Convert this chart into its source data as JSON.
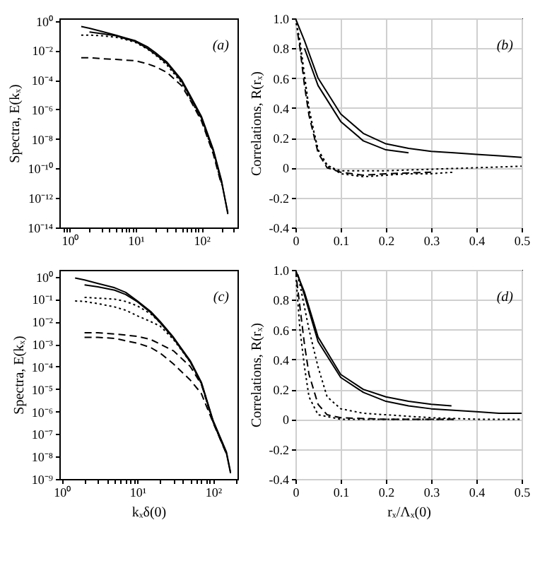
{
  "chart_data": [
    {
      "type": "line",
      "ylabel": "Spectra, E(kₓ)",
      "log": "xy",
      "annotations": [
        "(a)"
      ],
      "xlim": [
        0.7,
        350
      ],
      "ylim": [
        1e-14,
        1.5
      ],
      "xticks": [
        {
          "value": 0.8,
          "label": null
        },
        {
          "value": 0.9,
          "label": null
        },
        {
          "value": 1,
          "label": "10⁰"
        },
        {
          "value": 2,
          "label": null
        },
        {
          "value": 3,
          "label": null
        },
        {
          "value": 4,
          "label": null
        },
        {
          "value": 5,
          "label": null
        },
        {
          "value": 6,
          "label": null
        },
        {
          "value": 7,
          "label": null
        },
        {
          "value": 8,
          "label": null
        },
        {
          "value": 9,
          "label": null
        },
        {
          "value": 10,
          "label": "10¹"
        },
        {
          "value": 20,
          "label": null
        },
        {
          "value": 30,
          "label": null
        },
        {
          "value": 40,
          "label": null
        },
        {
          "value": 50,
          "label": null
        },
        {
          "value": 60,
          "label": null
        },
        {
          "value": 70,
          "label": null
        },
        {
          "value": 80,
          "label": null
        },
        {
          "value": 90,
          "label": null
        },
        {
          "value": 100,
          "label": "10²"
        },
        {
          "value": 200,
          "label": null
        },
        {
          "value": 300,
          "label": null
        }
      ],
      "yticks": [
        {
          "value": 1,
          "label": "10⁰"
        },
        {
          "value": 0.01,
          "label": "10⁻²"
        },
        {
          "value": 0.0001,
          "label": "10⁻⁴"
        },
        {
          "value": 1e-06,
          "label": "10⁻⁶"
        },
        {
          "value": 1e-08,
          "label": "10⁻⁸"
        },
        {
          "value": 1e-10,
          "label": "10⁻¹⁰"
        },
        {
          "value": 1e-12,
          "label": "10⁻¹²"
        },
        {
          "value": 1e-14,
          "label": "10⁻¹⁴"
        }
      ],
      "series": [
        {
          "color": "#000000",
          "line_style": "solid",
          "x": [
            1.5,
            2,
            3,
            5,
            7,
            10,
            15,
            20,
            30,
            50,
            70,
            100,
            150,
            200,
            250
          ],
          "values": [
            0.42,
            0.32,
            0.2,
            0.11,
            0.071,
            0.045,
            0.018,
            0.0071,
            0.0016,
            0.0001,
            6.3e-06,
            3.2e-07,
            2e-09,
            1.6e-11,
            8e-14
          ]
        },
        {
          "color": "#000000",
          "line_style": "solid",
          "x": [
            2,
            3,
            5,
            7,
            10,
            15,
            20,
            30,
            50,
            70,
            100,
            150,
            200,
            250
          ],
          "values": [
            0.18,
            0.14,
            0.1,
            0.063,
            0.04,
            0.014,
            0.0056,
            0.0013,
            7.9e-05,
            5e-06,
            2.5e-07,
            1.6e-09,
            1.3e-11,
            1e-13
          ]
        },
        {
          "color": "#000000",
          "line_style": "dotted",
          "x": [
            1.5,
            2,
            3,
            5,
            7,
            10,
            15,
            20,
            30,
            50,
            70,
            100,
            150,
            200
          ],
          "values": [
            0.11,
            0.11,
            0.1,
            0.079,
            0.056,
            0.035,
            0.0126,
            0.005,
            0.001,
            6.3e-05,
            4e-06,
            2e-07,
            1.3e-09,
            1e-11
          ]
        },
        {
          "color": "#000000",
          "line_style": "dashed",
          "x": [
            1.5,
            2,
            3,
            5,
            7,
            10,
            15,
            20,
            30,
            50,
            70,
            100,
            150,
            200
          ],
          "values": [
            0.0032,
            0.0032,
            0.0028,
            0.0025,
            0.0022,
            0.002,
            0.00126,
            0.00079,
            0.00032,
            4e-05,
            3.2e-06,
            1.6e-07,
            1e-09,
            7.9e-12
          ]
        }
      ]
    },
    {
      "type": "line",
      "ylabel": "Correlations, R(rₓ)",
      "annotations": [
        "(b)"
      ],
      "grid": true,
      "xlim": [
        0,
        0.5
      ],
      "ylim": [
        -0.4,
        1.0
      ],
      "xticks": [
        0,
        0.1,
        0.2,
        0.3,
        0.4,
        0.5
      ],
      "yticks": [
        {
          "value": -0.4,
          "label": "-0.4"
        },
        {
          "value": -0.2,
          "label": "-0.2"
        },
        {
          "value": 0,
          "label": "0"
        },
        {
          "value": 0.2,
          "label": "0.2"
        },
        {
          "value": 0.4,
          "label": "0.4"
        },
        {
          "value": 0.6,
          "label": "0.6"
        },
        {
          "value": 0.8,
          "label": "0.8"
        },
        {
          "value": 1,
          "label": "1.0"
        }
      ],
      "series": [
        {
          "color": "#000000",
          "line_style": "solid",
          "x": [
            0,
            0.02,
            0.05,
            0.1,
            0.15,
            0.2,
            0.25,
            0.3,
            0.35,
            0.4,
            0.45,
            0.5
          ],
          "values": [
            1,
            0.85,
            0.6,
            0.36,
            0.23,
            0.16,
            0.13,
            0.11,
            0.1,
            0.09,
            0.08,
            0.07
          ]
        },
        {
          "color": "#000000",
          "line_style": "solid",
          "x": [
            0.02,
            0.05,
            0.1,
            0.15,
            0.2,
            0.25
          ],
          "values": [
            0.8,
            0.55,
            0.31,
            0.18,
            0.12,
            0.1
          ]
        },
        {
          "color": "#000000",
          "line_style": "dotted",
          "x": [
            0,
            0.01,
            0.02,
            0.03,
            0.04,
            0.05,
            0.07,
            0.1,
            0.15,
            0.2,
            0.25,
            0.3,
            0.35
          ],
          "values": [
            1,
            0.85,
            0.62,
            0.4,
            0.25,
            0.12,
            0.02,
            -0.04,
            -0.06,
            -0.05,
            -0.04,
            -0.04,
            -0.03
          ]
        },
        {
          "color": "#000000",
          "line_style": "dotted",
          "x": [
            0,
            0.01,
            0.02,
            0.03,
            0.05,
            0.07,
            0.1,
            0.2,
            0.3,
            0.4,
            0.5
          ],
          "values": [
            1,
            0.82,
            0.6,
            0.38,
            0.12,
            0.01,
            -0.02,
            -0.02,
            -0.01,
            0,
            0.01
          ]
        },
        {
          "color": "#000000",
          "line_style": "dashed",
          "x": [
            0.005,
            0.01,
            0.02,
            0.03,
            0.05,
            0.07,
            0.1,
            0.15,
            0.2,
            0.3
          ],
          "values": [
            0.9,
            0.8,
            0.55,
            0.35,
            0.1,
            0,
            -0.03,
            -0.05,
            -0.04,
            -0.03
          ]
        }
      ]
    },
    {
      "type": "line",
      "xlabel": "kₓδ(0)",
      "ylabel": "Spectra, E(kₓ)",
      "log": "xy",
      "annotations": [
        "(c)"
      ],
      "xlim": [
        0.93,
        210
      ],
      "ylim": [
        1e-09,
        2
      ],
      "xticks": [
        {
          "value": 1,
          "label": "10⁰"
        },
        {
          "value": 2,
          "label": null
        },
        {
          "value": 3,
          "label": null
        },
        {
          "value": 4,
          "label": null
        },
        {
          "value": 5,
          "label": null
        },
        {
          "value": 6,
          "label": null
        },
        {
          "value": 7,
          "label": null
        },
        {
          "value": 8,
          "label": null
        },
        {
          "value": 9,
          "label": null
        },
        {
          "value": 10,
          "label": "10¹"
        },
        {
          "value": 20,
          "label": null
        },
        {
          "value": 30,
          "label": null
        },
        {
          "value": 40,
          "label": null
        },
        {
          "value": 50,
          "label": null
        },
        {
          "value": 60,
          "label": null
        },
        {
          "value": 70,
          "label": null
        },
        {
          "value": 80,
          "label": null
        },
        {
          "value": 90,
          "label": null
        },
        {
          "value": 100,
          "label": "10²"
        },
        {
          "value": 200,
          "label": null
        }
      ],
      "yticks": [
        {
          "value": 1,
          "label": "10⁰"
        },
        {
          "value": 0.1,
          "label": "10⁻¹"
        },
        {
          "value": 0.01,
          "label": "10⁻²"
        },
        {
          "value": 0.001,
          "label": "10⁻³"
        },
        {
          "value": 0.0001,
          "label": "10⁻⁴"
        },
        {
          "value": 1e-05,
          "label": "10⁻⁵"
        },
        {
          "value": 1e-06,
          "label": "10⁻⁶"
        },
        {
          "value": 1e-07,
          "label": "10⁻⁷"
        },
        {
          "value": 1e-08,
          "label": "10⁻⁸"
        },
        {
          "value": 1e-09,
          "label": "10⁻⁹"
        }
      ],
      "series": [
        {
          "color": "#000000",
          "line_style": "solid",
          "x": [
            1.5,
            2,
            3,
            5,
            7,
            10,
            15,
            20,
            30,
            50,
            70,
            100,
            150,
            170
          ],
          "values": [
            0.87,
            0.71,
            0.5,
            0.32,
            0.2,
            0.083,
            0.028,
            0.01,
            0.002,
            0.00018,
            2e-05,
            4e-07,
            1.6e-08,
            2e-09
          ]
        },
        {
          "color": "#000000",
          "line_style": "solid",
          "x": [
            2,
            3,
            5,
            7,
            10,
            15,
            20,
            30,
            50,
            70,
            100,
            150,
            170
          ],
          "values": [
            0.43,
            0.35,
            0.25,
            0.16,
            0.076,
            0.025,
            0.0089,
            0.0018,
            0.00016,
            1.8e-05,
            3.5e-07,
            1.4e-08,
            1.8e-09
          ]
        },
        {
          "color": "#000000",
          "line_style": "dotted",
          "x": [
            2,
            3,
            5,
            7,
            10,
            15,
            20,
            30,
            50,
            70,
            100,
            150
          ],
          "values": [
            0.12,
            0.11,
            0.1,
            0.079,
            0.05,
            0.022,
            0.0089,
            0.0018,
            0.00016,
            1.8e-05,
            3.5e-07,
            1.4e-08
          ]
        },
        {
          "color": "#000000",
          "line_style": "dotted",
          "x": [
            1.5,
            2,
            3,
            5,
            7,
            10,
            15,
            20,
            30,
            50,
            70,
            100,
            150
          ],
          "values": [
            0.083,
            0.079,
            0.063,
            0.045,
            0.032,
            0.018,
            0.01,
            0.0063,
            0.0016,
            0.00016,
            1.8e-05,
            3.5e-07,
            1.4e-08
          ]
        },
        {
          "color": "#000000",
          "line_style": "dashed",
          "x": [
            2,
            3,
            5,
            7,
            10,
            15,
            20,
            30,
            50,
            70,
            100,
            150
          ],
          "values": [
            0.0032,
            0.0032,
            0.0028,
            0.0025,
            0.0022,
            0.0016,
            0.001,
            0.0005,
            0.0001,
            1.6e-05,
            3.5e-07,
            1.4e-08
          ]
        },
        {
          "color": "#000000",
          "line_style": "dashed",
          "x": [
            2,
            3,
            5,
            7,
            10,
            15,
            20,
            30,
            50,
            70,
            100,
            150
          ],
          "values": [
            0.002,
            0.002,
            0.0018,
            0.0014,
            0.0011,
            0.0007,
            0.0004,
            0.00013,
            2.5e-05,
            6.3e-06,
            3.2e-07,
            1.3e-08
          ]
        }
      ]
    },
    {
      "type": "line",
      "xlabel": "rₓ/Λₓ(0)",
      "ylabel": "Correlations, R(rₓ)",
      "annotations": [
        "(d)"
      ],
      "grid": true,
      "xlim": [
        0,
        0.5
      ],
      "ylim": [
        -0.4,
        1.0
      ],
      "xticks": [
        0,
        0.1,
        0.2,
        0.3,
        0.4,
        0.5
      ],
      "yticks": [
        {
          "value": -0.4,
          "label": "-0.4"
        },
        {
          "value": -0.2,
          "label": "-0.2"
        },
        {
          "value": 0,
          "label": "0"
        },
        {
          "value": 0.2,
          "label": "0.2"
        },
        {
          "value": 0.4,
          "label": "0.4"
        },
        {
          "value": 0.6,
          "label": "0.6"
        },
        {
          "value": 0.8,
          "label": "0.8"
        },
        {
          "value": 1,
          "label": "1.0"
        }
      ],
      "series": [
        {
          "color": "#000000",
          "line_style": "solid",
          "x": [
            0,
            0.02,
            0.05,
            0.1,
            0.15,
            0.2,
            0.25,
            0.3,
            0.345
          ],
          "values": [
            1,
            0.85,
            0.55,
            0.3,
            0.2,
            0.15,
            0.12,
            0.1,
            0.09
          ]
        },
        {
          "color": "#000000",
          "line_style": "solid",
          "x": [
            0.005,
            0.02,
            0.05,
            0.1,
            0.15,
            0.2,
            0.25,
            0.3,
            0.35,
            0.4,
            0.45,
            0.5
          ],
          "values": [
            0.97,
            0.83,
            0.52,
            0.28,
            0.18,
            0.12,
            0.09,
            0.07,
            0.06,
            0.05,
            0.04,
            0.04
          ]
        },
        {
          "color": "#000000",
          "line_style": "dotted",
          "x": [
            0,
            0.01,
            0.03,
            0.05,
            0.07,
            0.1,
            0.15,
            0.2,
            0.3,
            0.4,
            0.5
          ],
          "values": [
            1,
            0.9,
            0.6,
            0.35,
            0.15,
            0.07,
            0.04,
            0.03,
            0.01,
            0,
            0
          ]
        },
        {
          "color": "#000000",
          "line_style": "dashed",
          "x": [
            0,
            0.01,
            0.02,
            0.03,
            0.05,
            0.07,
            0.1,
            0.2,
            0.35
          ],
          "values": [
            1,
            0.75,
            0.5,
            0.3,
            0.1,
            0.03,
            0.01,
            0,
            0
          ]
        },
        {
          "color": "#000000",
          "line_style": "dotted",
          "x": [
            0,
            0.005,
            0.01,
            0.02,
            0.03,
            0.05,
            0.1,
            0.2,
            0.35
          ],
          "values": [
            1,
            0.8,
            0.6,
            0.35,
            0.15,
            0.03,
            0,
            0,
            0
          ]
        }
      ]
    }
  ]
}
